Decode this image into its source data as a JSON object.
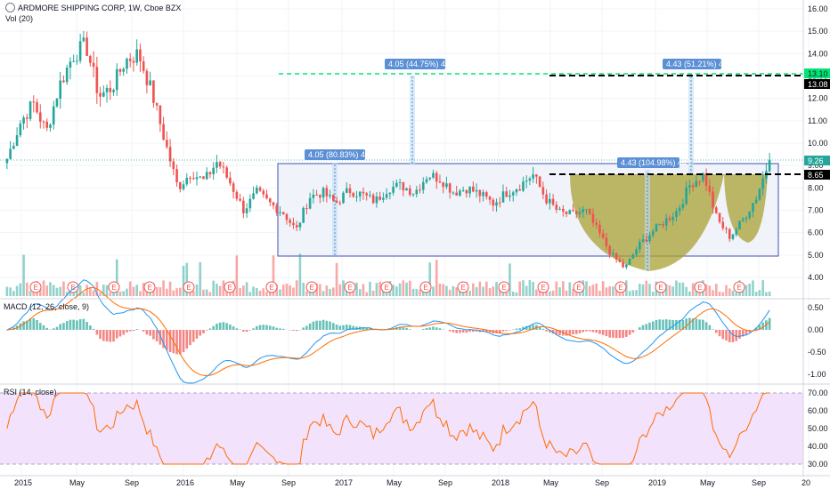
{
  "header": {
    "title": "ARDMORE SHIPPING CORP, 1W, Cboe BZX",
    "volume": "Vol (20)"
  },
  "macd_panel": {
    "label": "MACD (12, 26, close, 9)"
  },
  "rsi_panel": {
    "label": "RSI (14, close)"
  },
  "colors": {
    "up": "#26a69a",
    "down": "#ef5350",
    "macd": "#2196f3",
    "signal": "#ff6d00",
    "rsi": "#ff6d00",
    "rsi_band": "#f3e2fb",
    "cup": "#a9a133",
    "green_line": "#00e676",
    "box_fill": "#f0f3fa",
    "box_border": "#3f51b5"
  },
  "price_axis": {
    "ticks": [
      "16.00",
      "15.00",
      "14.00",
      "13.00",
      "12.00",
      "11.00",
      "10.00",
      "9.00",
      "8.00",
      "7.00",
      "6.00",
      "5.00",
      "4.00"
    ]
  },
  "macd_axis": {
    "ticks": [
      "0.50",
      "0.00",
      "-0.50",
      "-1.00"
    ]
  },
  "rsi_axis": {
    "ticks": [
      "70.00",
      "60.00",
      "50.00",
      "40.00",
      "30.00"
    ]
  },
  "time_axis": {
    "ticks": [
      "2015",
      "May",
      "Sep",
      "2016",
      "May",
      "Sep",
      "2017",
      "May",
      "Sep",
      "2018",
      "May",
      "Sep",
      "2019",
      "May",
      "Sep",
      "20"
    ]
  },
  "price_tags": {
    "target_green": "13.10",
    "target_black": "13.08",
    "last": "9.26",
    "neckline": "8.65"
  },
  "annotations": {
    "box_measure": "4.05 (80.83%) 405",
    "box_target": "4.05 (44.75%) 405",
    "cup_measure": "4.43 (104.98%) 443",
    "cup_target": "4.43 (51.21%) 443"
  },
  "earnings_marker": "E",
  "chart_data": {
    "type": "candlestick",
    "title": "ARDMORE SHIPPING CORP, 1W, Cboe BZX",
    "x_range": [
      "2015-01",
      "2019-12"
    ],
    "price_range": [
      3.4,
      16.2
    ],
    "key_levels": {
      "green_target": 13.1,
      "black_target": 13.08,
      "last_close": 9.26,
      "neckline": 8.65,
      "box_top": 9.0,
      "box_bottom": 5.0
    },
    "weekly_closes": [
      {
        "date": "2015-01",
        "close": 9.3
      },
      {
        "date": "2015-02",
        "close": 10.9
      },
      {
        "date": "2015-03",
        "close": 11.8
      },
      {
        "date": "2015-04",
        "close": 10.5
      },
      {
        "date": "2015-05",
        "close": 12.6
      },
      {
        "date": "2015-06",
        "close": 13.9
      },
      {
        "date": "2015-07",
        "close": 14.4
      },
      {
        "date": "2015-08",
        "close": 12.1
      },
      {
        "date": "2015-09",
        "close": 12.5
      },
      {
        "date": "2015-10",
        "close": 13.7
      },
      {
        "date": "2015-11",
        "close": 14.0
      },
      {
        "date": "2015-12",
        "close": 12.3
      },
      {
        "date": "2016-01",
        "close": 10.1
      },
      {
        "date": "2016-02",
        "close": 8.0
      },
      {
        "date": "2016-03",
        "close": 8.7
      },
      {
        "date": "2016-04",
        "close": 8.3
      },
      {
        "date": "2016-05",
        "close": 9.2
      },
      {
        "date": "2016-06",
        "close": 8.2
      },
      {
        "date": "2016-07",
        "close": 7.0
      },
      {
        "date": "2016-08",
        "close": 7.8
      },
      {
        "date": "2016-09",
        "close": 7.3
      },
      {
        "date": "2016-10",
        "close": 6.9
      },
      {
        "date": "2016-11",
        "close": 6.1
      },
      {
        "date": "2016-12",
        "close": 7.6
      },
      {
        "date": "2017-01",
        "close": 7.8
      },
      {
        "date": "2017-02",
        "close": 7.3
      },
      {
        "date": "2017-03",
        "close": 7.9
      },
      {
        "date": "2017-04",
        "close": 7.7
      },
      {
        "date": "2017-05",
        "close": 7.4
      },
      {
        "date": "2017-06",
        "close": 8.0
      },
      {
        "date": "2017-07",
        "close": 8.1
      },
      {
        "date": "2017-08",
        "close": 7.8
      },
      {
        "date": "2017-09",
        "close": 8.6
      },
      {
        "date": "2017-10",
        "close": 8.4
      },
      {
        "date": "2017-11",
        "close": 7.8
      },
      {
        "date": "2017-12",
        "close": 8.0
      },
      {
        "date": "2018-01",
        "close": 7.7
      },
      {
        "date": "2018-02",
        "close": 7.3
      },
      {
        "date": "2018-03",
        "close": 7.8
      },
      {
        "date": "2018-04",
        "close": 8.1
      },
      {
        "date": "2018-05",
        "close": 8.6
      },
      {
        "date": "2018-06",
        "close": 7.5
      },
      {
        "date": "2018-07",
        "close": 6.9
      },
      {
        "date": "2018-08",
        "close": 6.8
      },
      {
        "date": "2018-09",
        "close": 7.0
      },
      {
        "date": "2018-10",
        "close": 6.0
      },
      {
        "date": "2018-11",
        "close": 5.0
      },
      {
        "date": "2018-12",
        "close": 4.4
      },
      {
        "date": "2019-01",
        "close": 5.4
      },
      {
        "date": "2019-02",
        "close": 6.0
      },
      {
        "date": "2019-03",
        "close": 6.5
      },
      {
        "date": "2019-04",
        "close": 7.0
      },
      {
        "date": "2019-05",
        "close": 8.2
      },
      {
        "date": "2019-06",
        "close": 8.6
      },
      {
        "date": "2019-07",
        "close": 6.6
      },
      {
        "date": "2019-08",
        "close": 5.8
      },
      {
        "date": "2019-09",
        "close": 6.6
      },
      {
        "date": "2019-10",
        "close": 7.6
      },
      {
        "date": "2019-11",
        "close": 9.26
      }
    ]
  }
}
